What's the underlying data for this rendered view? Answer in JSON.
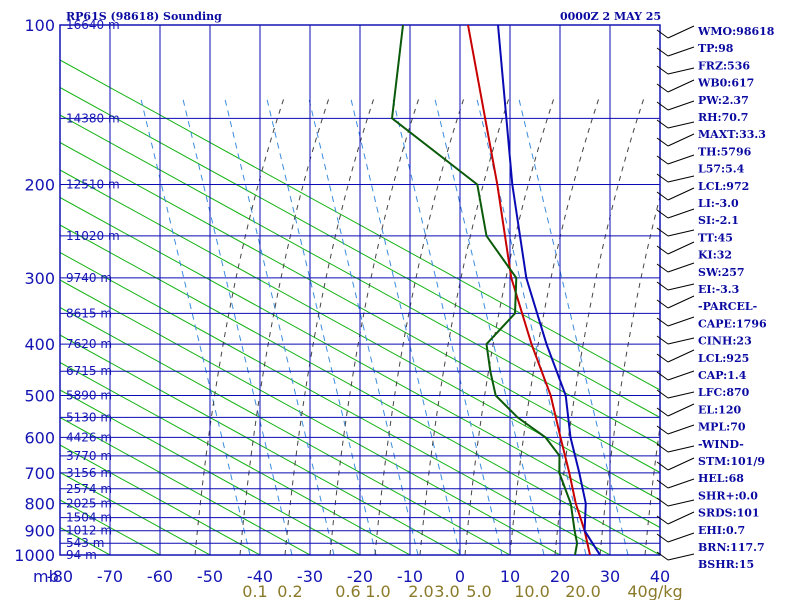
{
  "header": {
    "station": "RP61S (98618) Sounding",
    "time": "0000Z  2 MAY 25"
  },
  "indices": [
    "WMO:98618",
    "TP:98",
    "FRZ:536",
    "WB0:617",
    "PW:2.37",
    "RH:70.7",
    "MAXT:33.3",
    "TH:5796",
    "L57:5.4",
    "LCL:972",
    "LI:-3.0",
    "SI:-2.1",
    "TT:45",
    "KI:32",
    "SW:257",
    "EI:-3.3",
    "-PARCEL-",
    "CAPE:1796",
    "CINH:23",
    "LCL:925",
    "CAP:1.4",
    "LFC:870",
    "EL:120",
    "MPL:70",
    "-WIND-",
    "STM:101/9",
    "HEL:68",
    "SHR+:0.0",
    "SRDS:101",
    "EHI:0.7",
    "BRN:117.7",
    "BSHR:15"
  ],
  "colors": {
    "frame": "#1414b4",
    "grid": "#0a0ab4",
    "dry_adiabat": "#16b416",
    "moist_adiabat": "#444444",
    "mixing_ratio": "#3c8cdc",
    "temperature": "#c80000",
    "dewpoint": "#0a5a0a",
    "parcel": "#0a0ab4"
  },
  "chart_data": {
    "type": "skew-t",
    "pressure_ticks": [
      "100",
      "200",
      "300",
      "400",
      "500",
      "600",
      "700",
      "800",
      "900",
      "1000"
    ],
    "pressure_values": [
      100,
      200,
      300,
      400,
      500,
      600,
      700,
      800,
      900,
      1000
    ],
    "height_labels": [
      {
        "p": 100,
        "label": "16640 m"
      },
      {
        "p": 150,
        "label": "14380 m"
      },
      {
        "p": 200,
        "label": "12510 m"
      },
      {
        "p": 250,
        "label": "11020 m"
      },
      {
        "p": 300,
        "label": "9740 m"
      },
      {
        "p": 350,
        "label": "8615 m"
      },
      {
        "p": 400,
        "label": "7620 m"
      },
      {
        "p": 450,
        "label": "6715 m"
      },
      {
        "p": 500,
        "label": "5890 m"
      },
      {
        "p": 550,
        "label": "5130 m"
      },
      {
        "p": 600,
        "label": "4426 m"
      },
      {
        "p": 650,
        "label": "3770 m"
      },
      {
        "p": 700,
        "label": "3156 m"
      },
      {
        "p": 750,
        "label": "2574 m"
      },
      {
        "p": 800,
        "label": "2025 m"
      },
      {
        "p": 850,
        "label": "1504 m"
      },
      {
        "p": 900,
        "label": "1012 m"
      },
      {
        "p": 950,
        "label": "543 m"
      },
      {
        "p": 1000,
        "label": "94 m"
      }
    ],
    "pressure_axis_unit": "mb",
    "temperature_ticks": [
      "-80",
      "-70",
      "-60",
      "-50",
      "-40",
      "-30",
      "-20",
      "-10",
      "0",
      "10",
      "20",
      "30",
      "40"
    ],
    "temperature_values": [
      -80,
      -70,
      -60,
      -50,
      -40,
      -30,
      -20,
      -10,
      0,
      10,
      20,
      30,
      40
    ],
    "mixing_ratio_ticks": [
      "0.1",
      "0.2",
      "0.6",
      "1.0",
      "2.0",
      "3.0",
      "5.0",
      "10.0",
      "20.0",
      "40g/kg"
    ],
    "xlim": [
      -80,
      40
    ],
    "ylim": [
      1000,
      100
    ],
    "grid": true,
    "series": [
      {
        "key": "temperature",
        "points": [
          [
            26,
            1000
          ],
          [
            22,
            900
          ],
          [
            17,
            800
          ],
          [
            12,
            700
          ],
          [
            6,
            600
          ],
          [
            -1,
            500
          ],
          [
            -11,
            400
          ],
          [
            -23,
            300
          ],
          [
            -37,
            200
          ],
          [
            -62,
            100
          ]
        ]
      },
      {
        "key": "dewpoint",
        "points": [
          [
            23,
            1000
          ],
          [
            22,
            950
          ],
          [
            20,
            900
          ],
          [
            16,
            800
          ],
          [
            10,
            700
          ],
          [
            8,
            650
          ],
          [
            3,
            600
          ],
          [
            -5,
            550
          ],
          [
            -12,
            500
          ],
          [
            -16,
            450
          ],
          [
            -20,
            400
          ],
          [
            -18,
            350
          ],
          [
            -22,
            300
          ],
          [
            -33,
            250
          ],
          [
            -41,
            200
          ],
          [
            -66,
            150
          ],
          [
            -75,
            100
          ]
        ]
      },
      {
        "key": "parcel",
        "points": [
          [
            28,
            1000
          ],
          [
            22,
            900
          ],
          [
            19,
            800
          ],
          [
            14,
            700
          ],
          [
            8,
            600
          ],
          [
            2,
            500
          ],
          [
            -8,
            400
          ],
          [
            -20,
            300
          ],
          [
            -34,
            200
          ],
          [
            -56,
            100
          ]
        ]
      }
    ]
  }
}
